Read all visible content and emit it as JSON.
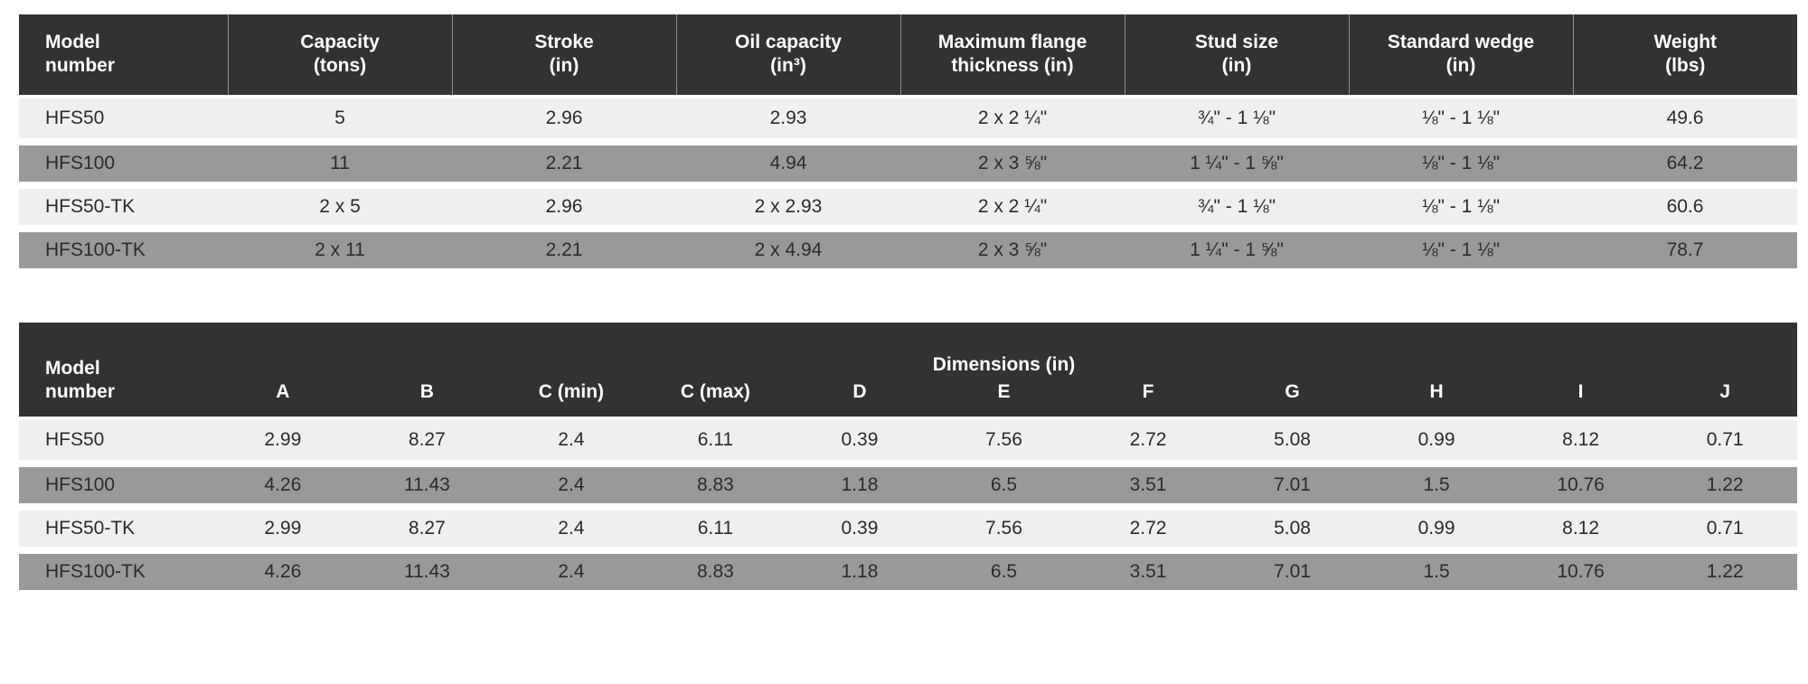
{
  "colors": {
    "header_bg": "#333132",
    "header_text": "#ffffff",
    "row_light_bg": "#f0efef",
    "row_gray_bg": "#9a999a",
    "body_text": "#2d2a2b",
    "page_bg": "#ffffff"
  },
  "spec_table": {
    "headers": [
      "Model\nnumber",
      "Capacity\n(tons)",
      "Stroke\n(in)",
      "Oil capacity\n(in³)",
      "Maximum flange\nthickness (in)",
      "Stud size\n(in)",
      "Standard wedge\n(in)",
      "Weight\n(lbs)"
    ],
    "rows": [
      [
        "HFS50",
        "5",
        "2.96",
        "2.93",
        "2 x 2 ¼\"",
        "¾\" - 1 ⅛\"",
        "⅛\" - 1 ⅛\"",
        "49.6"
      ],
      [
        "HFS100",
        "11",
        "2.21",
        "4.94",
        "2 x 3 ⅝\"",
        "1 ¼\" - 1 ⅝\"",
        "⅛\" - 1 ⅛\"",
        "64.2"
      ],
      [
        "HFS50-TK",
        "2 x 5",
        "2.96",
        "2 x 2.93",
        "2 x 2 ¼\"",
        "¾\" - 1 ⅛\"",
        "⅛\" - 1 ⅛\"",
        "60.6"
      ],
      [
        "HFS100-TK",
        "2 x 11",
        "2.21",
        "2 x 4.94",
        "2 x 3 ⅝\"",
        "1 ¼\" - 1 ⅝\"",
        "⅛\" - 1 ⅛\"",
        "78.7"
      ]
    ]
  },
  "dimensions_table": {
    "model_header": "Model\nnumber",
    "group_header": "Dimensions (in)",
    "sub_headers": [
      "A",
      "B",
      "C (min)",
      "C (max)",
      "D",
      "E",
      "F",
      "G",
      "H",
      "I",
      "J"
    ],
    "rows": [
      [
        "HFS50",
        "2.99",
        "8.27",
        "2.4",
        "6.11",
        "0.39",
        "7.56",
        "2.72",
        "5.08",
        "0.99",
        "8.12",
        "0.71"
      ],
      [
        "HFS100",
        "4.26",
        "11.43",
        "2.4",
        "8.83",
        "1.18",
        "6.5",
        "3.51",
        "7.01",
        "1.5",
        "10.76",
        "1.22"
      ],
      [
        "HFS50-TK",
        "2.99",
        "8.27",
        "2.4",
        "6.11",
        "0.39",
        "7.56",
        "2.72",
        "5.08",
        "0.99",
        "8.12",
        "0.71"
      ],
      [
        "HFS100-TK",
        "4.26",
        "11.43",
        "2.4",
        "8.83",
        "1.18",
        "6.5",
        "3.51",
        "7.01",
        "1.5",
        "10.76",
        "1.22"
      ]
    ]
  }
}
